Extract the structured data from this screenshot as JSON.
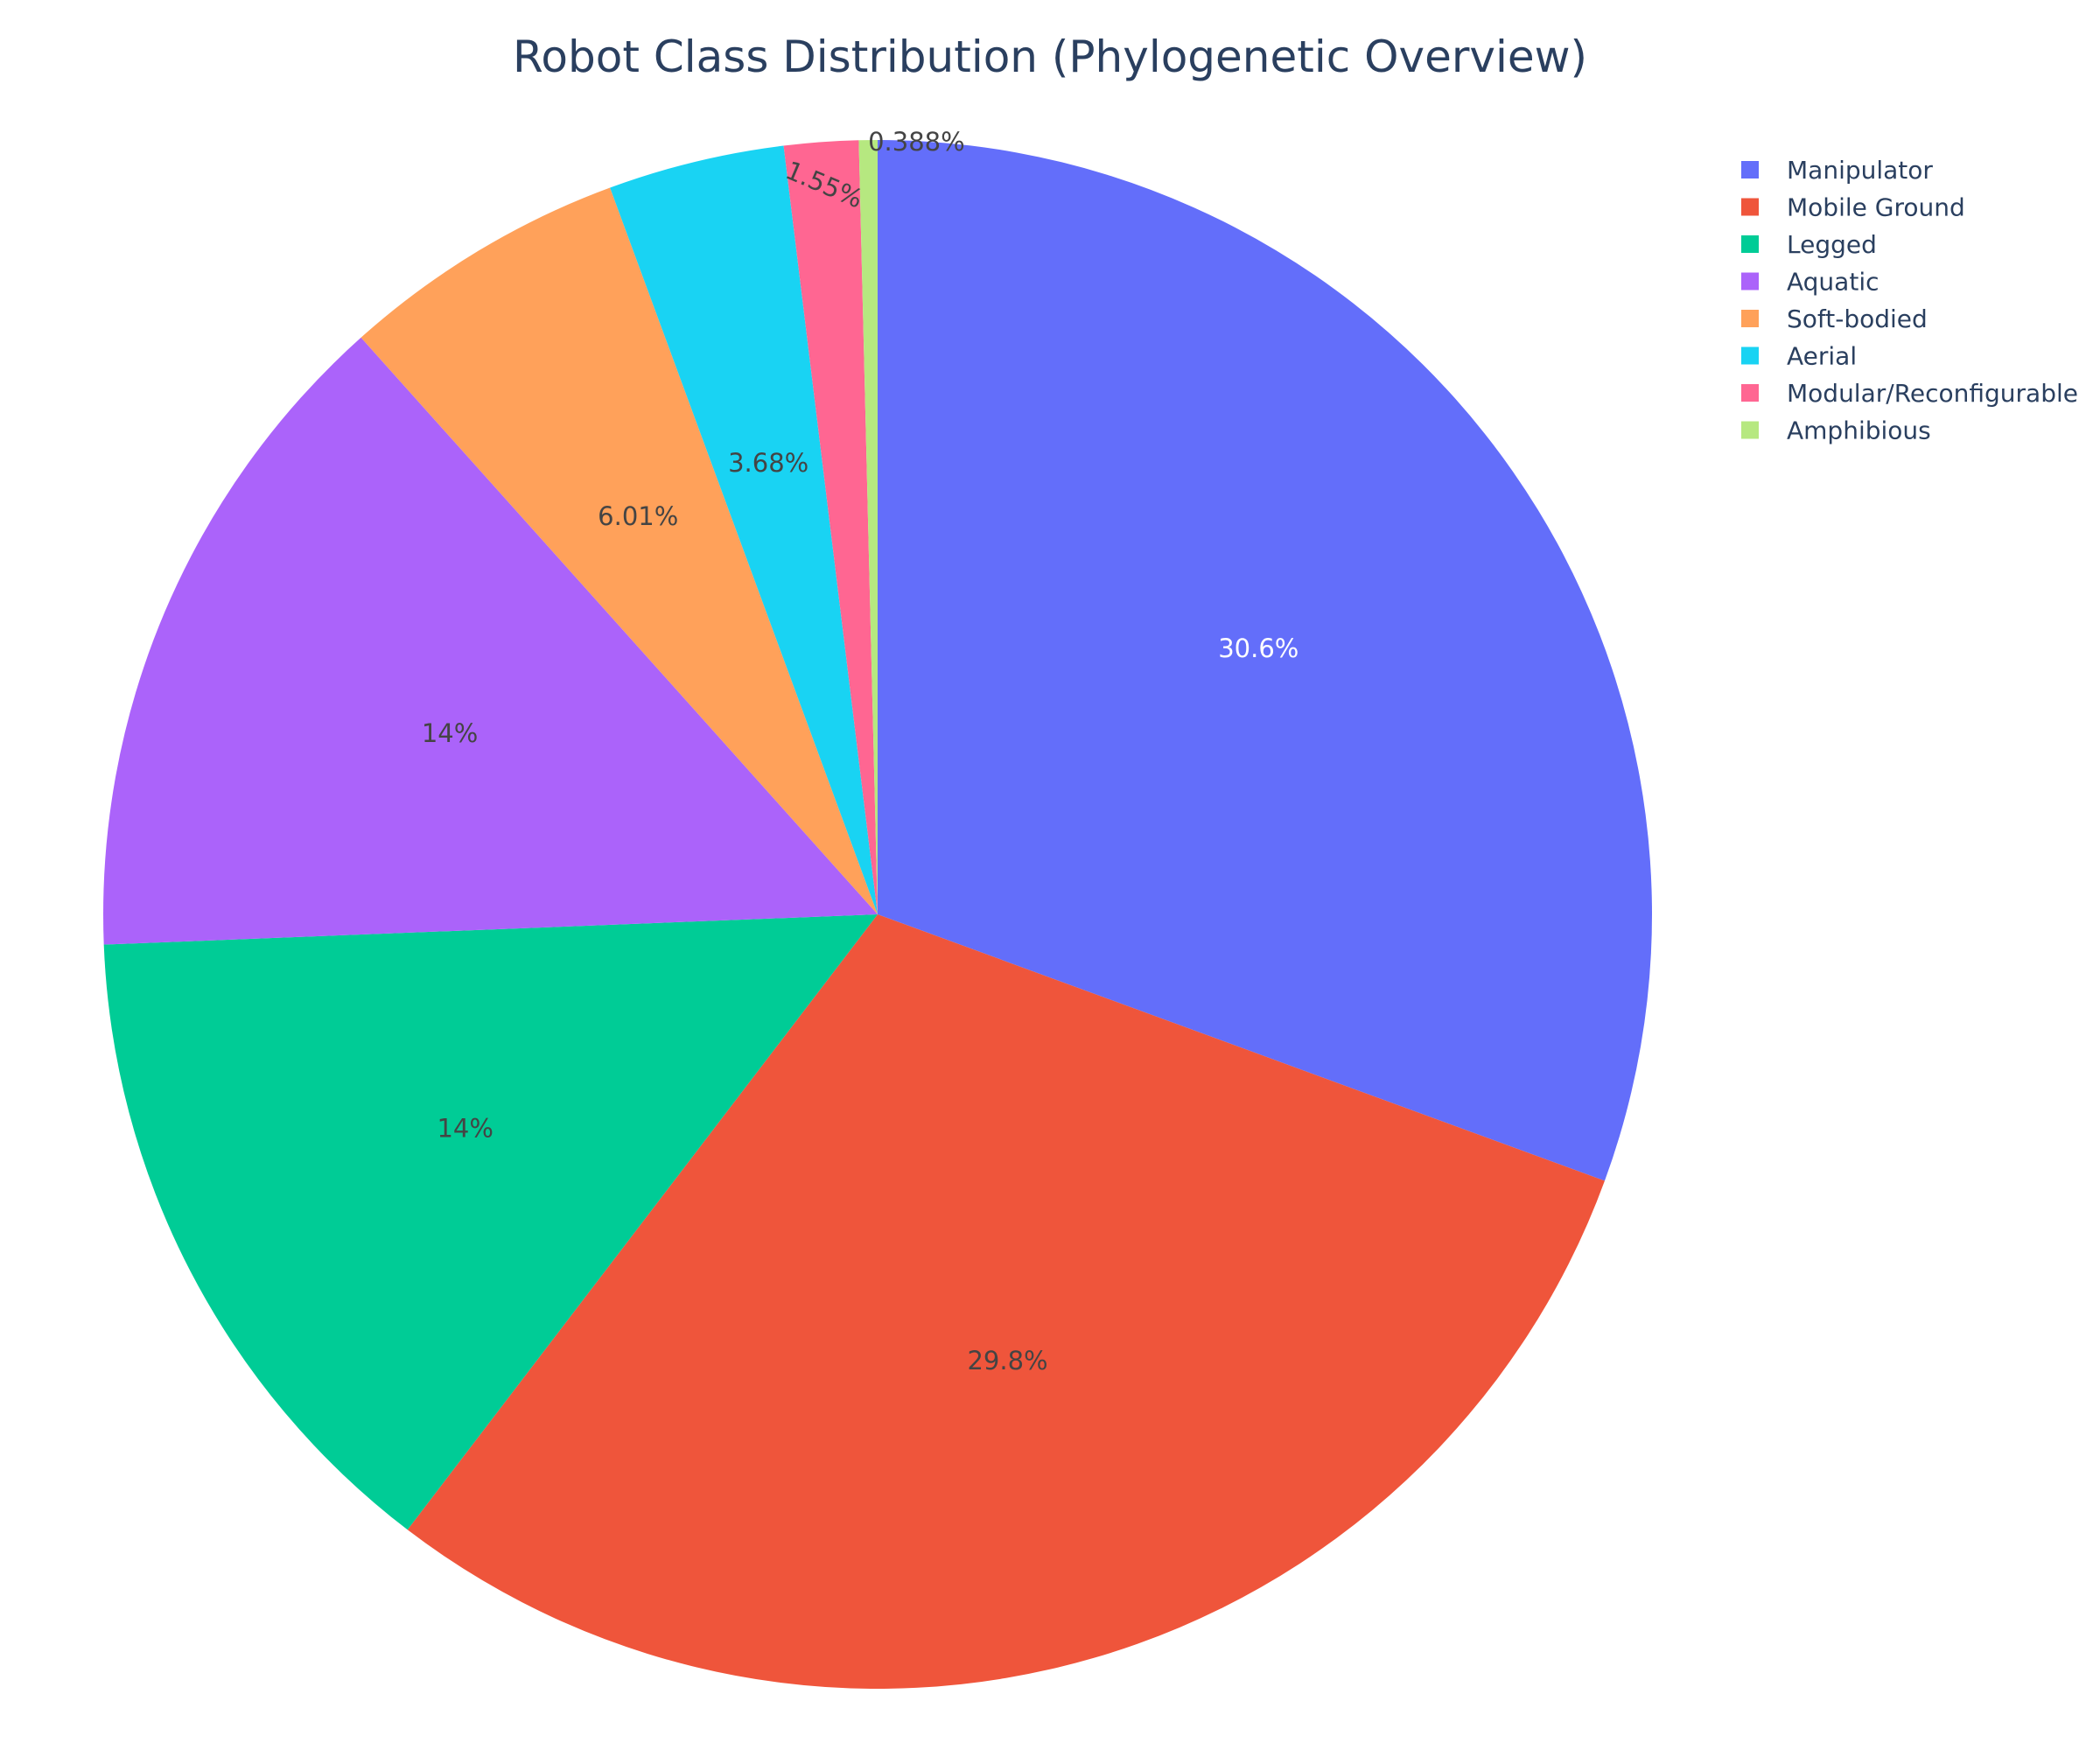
{
  "chart_data": {
    "type": "pie",
    "title": "Robot Class Distribution (Phylogenetic Overview)",
    "legend_position": "top-right",
    "slices": [
      {
        "name": "Manipulator",
        "value": 30.6,
        "label": "30.6%",
        "color": "#636efa",
        "text_color": "#ffffff"
      },
      {
        "name": "Mobile Ground",
        "value": 29.8,
        "label": "29.8%",
        "color": "#ef553b",
        "text_color": "#444444"
      },
      {
        "name": "Legged",
        "value": 14.0,
        "label": "14%",
        "color": "#00cc96",
        "text_color": "#444444"
      },
      {
        "name": "Aquatic",
        "value": 14.0,
        "label": "14%",
        "color": "#ab63fa",
        "text_color": "#444444"
      },
      {
        "name": "Soft-bodied",
        "value": 6.01,
        "label": "6.01%",
        "color": "#ffa15a",
        "text_color": "#444444"
      },
      {
        "name": "Aerial",
        "value": 3.68,
        "label": "3.68%",
        "color": "#19d3f3",
        "text_color": "#444444"
      },
      {
        "name": "Modular/Reconfigurable",
        "value": 1.55,
        "label": "1.55%",
        "color": "#ff6692",
        "text_color": "#444444"
      },
      {
        "name": "Amphibious",
        "value": 0.388,
        "label": "0.388%",
        "color": "#b6e880",
        "text_color": "#444444"
      }
    ],
    "sort": "descending",
    "direction": "clockwise",
    "start_angle": "12 o'clock"
  }
}
